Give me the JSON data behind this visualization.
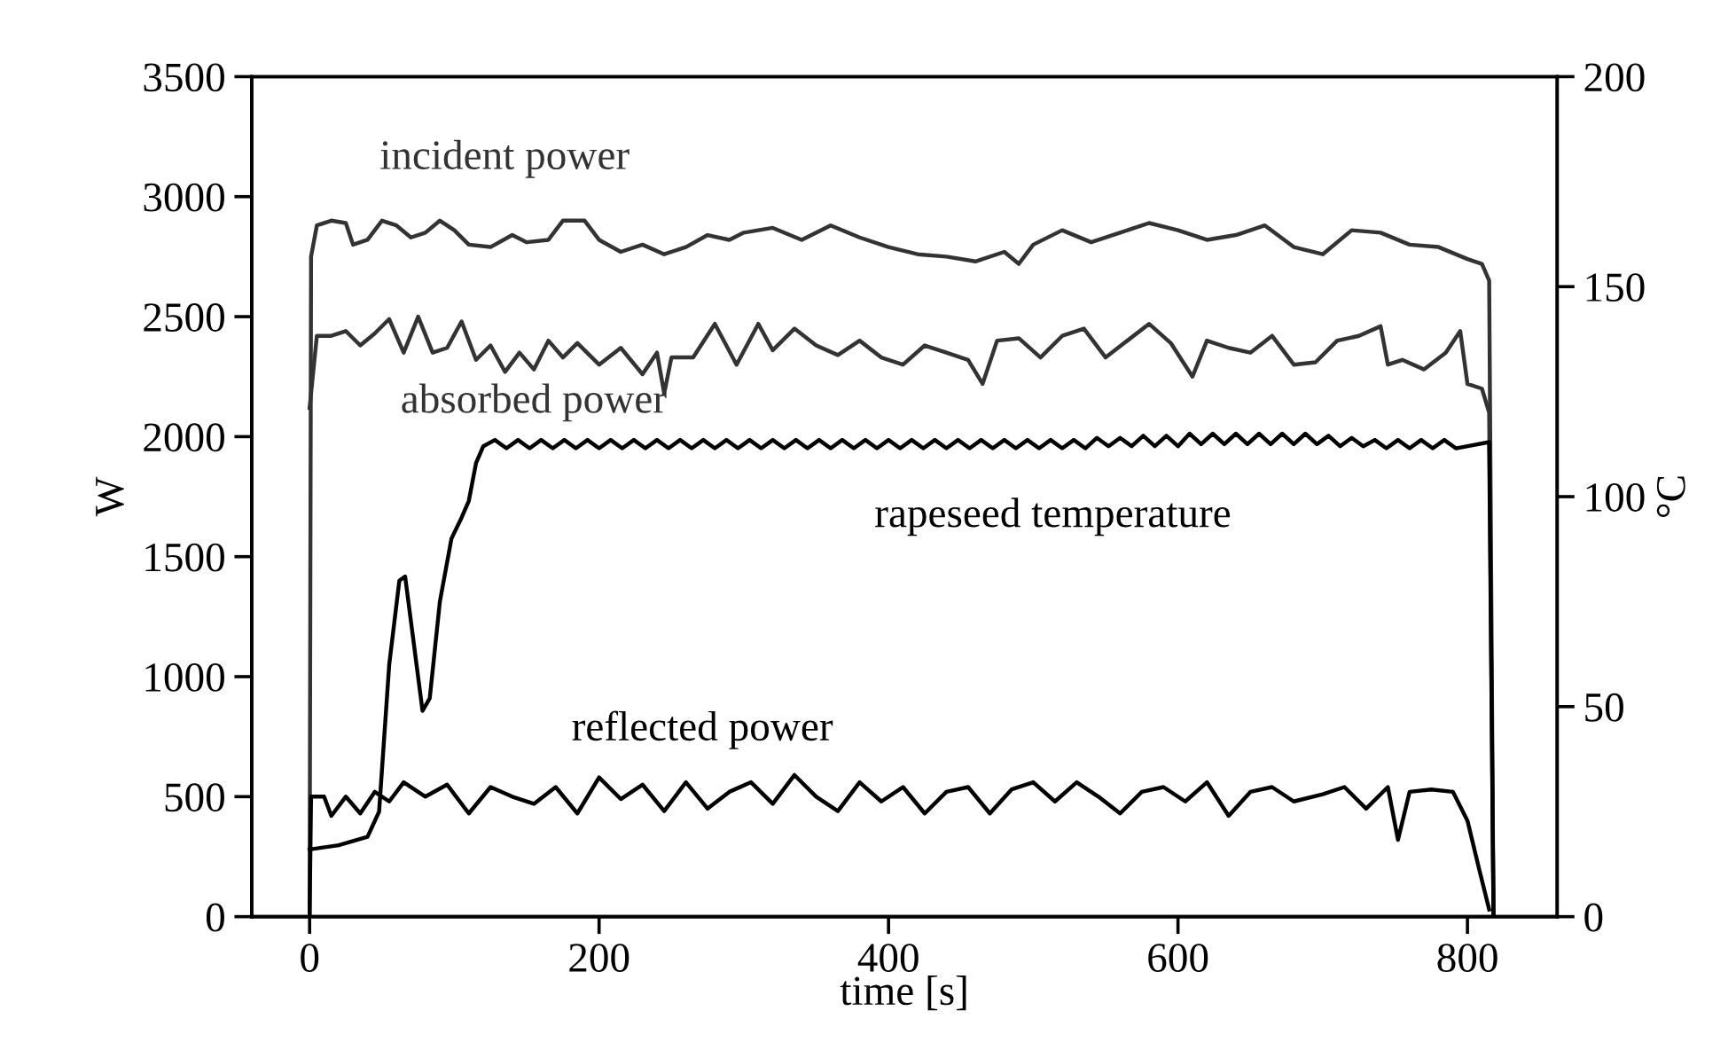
{
  "chart_data": {
    "type": "line",
    "xlabel": "time [s]",
    "ylabel": "W",
    "y2label": "°C",
    "xlim": [
      -40,
      862
    ],
    "xticks": [
      0,
      200,
      400,
      600,
      800
    ],
    "ylim": [
      0,
      3500
    ],
    "yticks": [
      0,
      500,
      1000,
      1500,
      2000,
      2500,
      3000,
      3500
    ],
    "y2lim": [
      0,
      200
    ],
    "y2ticks": [
      0,
      50,
      100,
      150,
      200
    ],
    "grid": false,
    "legend": false,
    "marker": "none",
    "line_style": "solid",
    "series": [
      {
        "name": "incident power",
        "color": "#333333",
        "x": [
          0,
          1,
          5,
          15,
          25,
          30,
          40,
          50,
          60,
          70,
          80,
          90,
          100,
          110,
          125,
          140,
          150,
          165,
          175,
          190,
          200,
          215,
          230,
          245,
          260,
          275,
          290,
          300,
          320,
          340,
          360,
          380,
          400,
          420,
          440,
          460,
          480,
          490,
          500,
          520,
          540,
          560,
          580,
          600,
          620,
          640,
          660,
          680,
          700,
          720,
          740,
          760,
          780,
          800,
          810,
          815,
          818
        ],
        "values": [
          0,
          2750,
          2880,
          2900,
          2890,
          2800,
          2820,
          2900,
          2880,
          2830,
          2850,
          2900,
          2860,
          2800,
          2790,
          2840,
          2810,
          2820,
          2900,
          2900,
          2820,
          2770,
          2800,
          2760,
          2790,
          2840,
          2820,
          2850,
          2870,
          2820,
          2880,
          2830,
          2790,
          2760,
          2750,
          2730,
          2770,
          2720,
          2800,
          2860,
          2810,
          2850,
          2890,
          2860,
          2820,
          2840,
          2880,
          2790,
          2760,
          2860,
          2850,
          2800,
          2790,
          2740,
          2720,
          2650,
          0
        ]
      },
      {
        "name": "absorbed power",
        "color": "#333333",
        "x": [
          0,
          5,
          15,
          25,
          35,
          45,
          55,
          65,
          75,
          85,
          95,
          105,
          115,
          125,
          135,
          145,
          155,
          165,
          175,
          185,
          200,
          215,
          230,
          240,
          245,
          250,
          265,
          280,
          295,
          310,
          320,
          335,
          350,
          365,
          380,
          395,
          410,
          425,
          440,
          455,
          465,
          475,
          490,
          505,
          520,
          535,
          550,
          565,
          580,
          595,
          610,
          620,
          635,
          650,
          665,
          680,
          695,
          710,
          725,
          740,
          745,
          755,
          770,
          785,
          795,
          800,
          810,
          815,
          818
        ],
        "values": [
          2120,
          2420,
          2420,
          2440,
          2380,
          2430,
          2490,
          2350,
          2500,
          2350,
          2370,
          2480,
          2320,
          2380,
          2270,
          2350,
          2280,
          2400,
          2330,
          2390,
          2300,
          2370,
          2260,
          2350,
          2180,
          2330,
          2330,
          2470,
          2300,
          2470,
          2360,
          2450,
          2380,
          2340,
          2400,
          2330,
          2300,
          2380,
          2350,
          2320,
          2220,
          2400,
          2410,
          2330,
          2420,
          2450,
          2330,
          2400,
          2470,
          2390,
          2250,
          2400,
          2370,
          2350,
          2420,
          2300,
          2310,
          2400,
          2420,
          2460,
          2300,
          2320,
          2280,
          2350,
          2440,
          2220,
          2200,
          2100,
          0
        ]
      },
      {
        "name": "reflected power",
        "color": "#000000",
        "x": [
          0,
          1,
          10,
          15,
          25,
          35,
          45,
          55,
          65,
          80,
          95,
          110,
          125,
          140,
          155,
          170,
          185,
          200,
          215,
          230,
          245,
          260,
          275,
          290,
          305,
          320,
          335,
          350,
          365,
          380,
          395,
          410,
          425,
          440,
          455,
          470,
          485,
          500,
          515,
          530,
          545,
          560,
          575,
          590,
          605,
          620,
          635,
          650,
          665,
          680,
          700,
          715,
          730,
          745,
          752,
          760,
          775,
          790,
          800,
          808,
          815
        ],
        "values": [
          0,
          500,
          500,
          420,
          500,
          430,
          520,
          480,
          560,
          500,
          550,
          430,
          540,
          500,
          470,
          540,
          430,
          580,
          490,
          550,
          440,
          560,
          450,
          520,
          560,
          470,
          590,
          500,
          440,
          560,
          480,
          540,
          430,
          520,
          540,
          430,
          530,
          560,
          480,
          560,
          500,
          430,
          520,
          540,
          480,
          560,
          420,
          520,
          540,
          480,
          510,
          540,
          450,
          540,
          320,
          520,
          530,
          520,
          400,
          200,
          30
        ]
      },
      {
        "name": "rapeseed temperature",
        "color": "#000000",
        "axis": "y2",
        "x": [
          0,
          20,
          40,
          48,
          55,
          62,
          66,
          72,
          78,
          83,
          90,
          98,
          105,
          110,
          115,
          120,
          128,
          136,
          144,
          152,
          160,
          168,
          176,
          184,
          192,
          200,
          208,
          216,
          224,
          232,
          240,
          248,
          256,
          264,
          272,
          280,
          288,
          296,
          304,
          312,
          320,
          328,
          336,
          344,
          352,
          360,
          368,
          376,
          384,
          392,
          400,
          408,
          416,
          424,
          432,
          440,
          448,
          456,
          464,
          472,
          480,
          488,
          496,
          504,
          512,
          520,
          528,
          536,
          544,
          552,
          560,
          568,
          576,
          584,
          592,
          600,
          608,
          616,
          624,
          632,
          640,
          648,
          656,
          664,
          672,
          680,
          688,
          696,
          704,
          712,
          720,
          728,
          736,
          744,
          752,
          760,
          768,
          776,
          784,
          792,
          815,
          818
        ],
        "values": [
          16,
          17,
          19,
          25,
          60,
          80,
          81,
          65,
          49,
          52,
          75,
          90,
          95,
          99,
          108,
          112,
          113.5,
          111.5,
          113.5,
          111.5,
          113.5,
          111.5,
          113.5,
          111.5,
          113.5,
          111.5,
          113.5,
          111.5,
          113.5,
          111.5,
          113.5,
          111.5,
          113.5,
          111.5,
          113.5,
          111.5,
          113.5,
          111.5,
          113.5,
          111.5,
          113.5,
          111.5,
          113.5,
          111.5,
          113.5,
          111.5,
          113.5,
          111.5,
          113.5,
          111.5,
          113.5,
          111.5,
          113.5,
          111.5,
          113.5,
          111.5,
          113.5,
          111.5,
          113.5,
          111.5,
          113.5,
          111.5,
          113.5,
          111.5,
          113.5,
          111.5,
          113.5,
          111.5,
          114,
          112,
          114,
          112,
          114.5,
          112,
          114.5,
          112,
          115,
          112.5,
          115,
          112.5,
          115,
          112.5,
          115,
          112.5,
          115,
          112.5,
          115,
          112.5,
          114.5,
          112,
          114,
          112,
          113.5,
          111.5,
          113.5,
          111.5,
          113.5,
          111.5,
          113.5,
          111.5,
          113,
          0
        ]
      }
    ]
  }
}
